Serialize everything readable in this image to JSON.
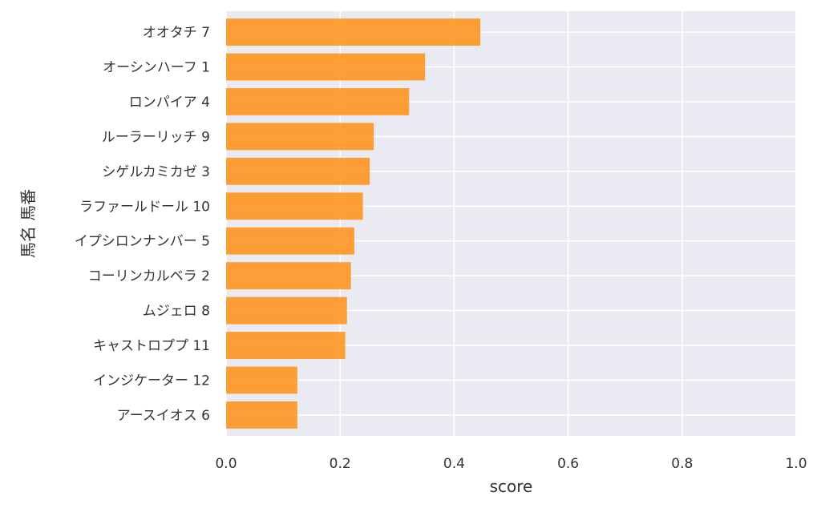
{
  "chart_data": {
    "type": "bar",
    "orientation": "horizontal",
    "categories": [
      "オオタチ 7",
      "オーシンハーフ 1",
      "ロンパイア 4",
      "ルーラーリッチ 9",
      "シゲルカミカゼ 3",
      "ラファールドール 10",
      "イプシロンナンバー 5",
      "コーリンカルベラ 2",
      "ムジェロ 8",
      "キャストロププ 11",
      "インジケーター 12",
      "アースイオス 6"
    ],
    "values": [
      0.446,
      0.349,
      0.321,
      0.259,
      0.252,
      0.24,
      0.225,
      0.219,
      0.212,
      0.209,
      0.125,
      0.125
    ],
    "xlabel": "score",
    "ylabel": "馬名 馬番",
    "xlim": [
      0.0,
      1.0
    ],
    "xticks": [
      "0.0",
      "0.2",
      "0.4",
      "0.6",
      "0.8",
      "1.0"
    ],
    "grid": true,
    "bar_color": "#ff9114",
    "background_color": "#eaeaf2",
    "grid_color": "#ffffff"
  }
}
